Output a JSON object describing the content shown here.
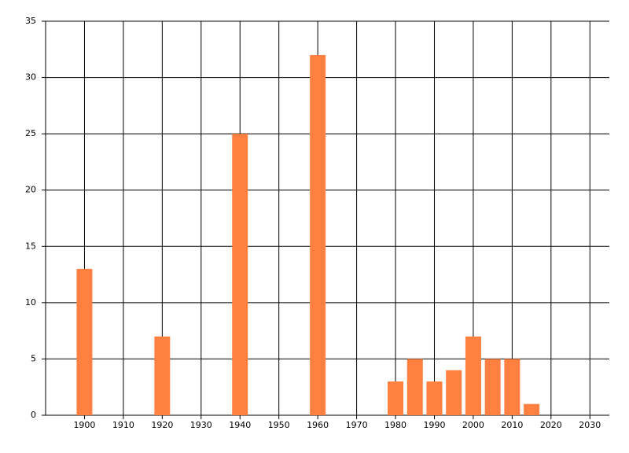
{
  "chart_data": {
    "type": "bar",
    "x": [
      1900,
      1920,
      1940,
      1960,
      1980,
      1985,
      1990,
      1995,
      2000,
      2005,
      2010,
      2015
    ],
    "values": [
      13,
      7,
      25,
      32,
      3,
      5,
      3,
      4,
      7,
      5,
      5,
      1
    ],
    "color": "#ff8040",
    "xlim": [
      1890,
      2035
    ],
    "xticks": [
      1900,
      1910,
      1920,
      1930,
      1940,
      1950,
      1960,
      1970,
      1980,
      1990,
      2000,
      2010,
      2020,
      2030
    ],
    "ylim": [
      0,
      35
    ],
    "yticks": [
      0,
      5,
      10,
      15,
      20,
      25,
      30,
      35
    ],
    "grid": true
  }
}
